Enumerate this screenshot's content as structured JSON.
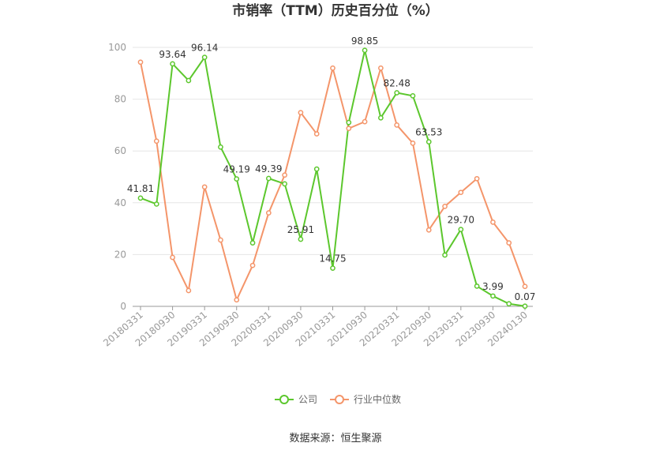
{
  "chart_data": {
    "type": "line",
    "title": "市销率（TTM）历史百分位（%）",
    "source": "数据来源：恒生聚源",
    "ylim": [
      0,
      100
    ],
    "yticks": [
      0,
      20,
      40,
      60,
      80,
      100
    ],
    "grid": true,
    "legend_position": "bottom",
    "x_tick_labels": [
      "20180331",
      "20180930",
      "20190331",
      "20190930",
      "20200331",
      "20200930",
      "20210331",
      "20210930",
      "20220331",
      "20220930",
      "20230331",
      "20230930",
      "20240130"
    ],
    "x": [
      "20180331",
      "20180630",
      "20180930",
      "20181231",
      "20190331",
      "20190630",
      "20190930",
      "20191231",
      "20200331",
      "20200630",
      "20200930",
      "20201231",
      "20210331",
      "20210630",
      "20210930",
      "20211231",
      "20220331",
      "20220630",
      "20220930",
      "20221231",
      "20230331",
      "20230630",
      "20230930",
      "20231231",
      "20240130"
    ],
    "series": [
      {
        "name": "公司",
        "color": "#5cc72d",
        "values": [
          41.81,
          39.5,
          93.64,
          87.2,
          96.14,
          61.5,
          49.19,
          24.5,
          49.39,
          47.3,
          25.91,
          53.0,
          14.75,
          71.0,
          98.85,
          72.8,
          82.48,
          81.3,
          63.53,
          19.8,
          29.7,
          7.8,
          3.99,
          1.0,
          0.07
        ],
        "labels": [
          "41.81",
          "",
          "93.64",
          "",
          "96.14",
          "",
          "49.19",
          "",
          "49.39",
          "",
          "25.91",
          "",
          "14.75",
          "",
          "98.85",
          "",
          "82.48",
          "",
          "63.53",
          "",
          "29.70",
          "",
          "3.99",
          "",
          "0.07"
        ]
      },
      {
        "name": "行业中位数",
        "color": "#f4956a",
        "values": [
          94.3,
          63.8,
          18.9,
          6.1,
          46.1,
          25.6,
          2.5,
          15.8,
          36.1,
          50.7,
          74.8,
          66.6,
          92.0,
          68.7,
          71.3,
          92.0,
          70.0,
          63.0,
          29.5,
          38.6,
          44.0,
          49.3,
          32.5,
          24.5,
          7.7
        ]
      }
    ]
  }
}
